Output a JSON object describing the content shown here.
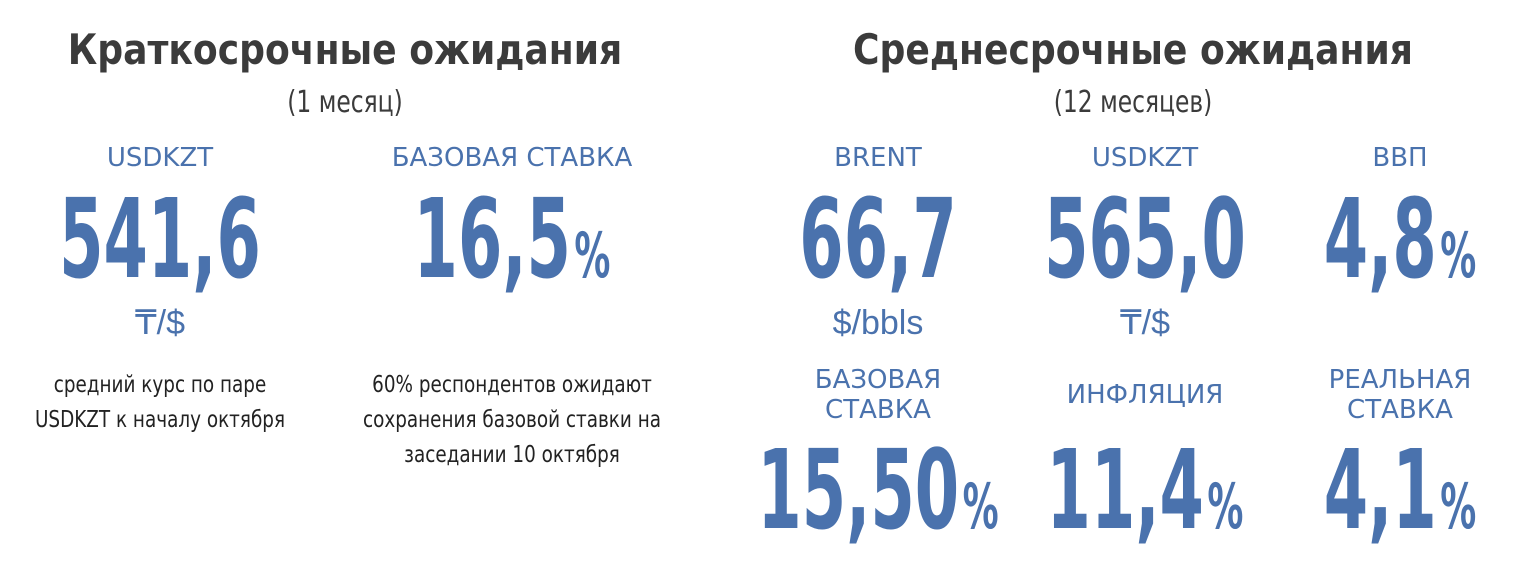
{
  "short_term": {
    "title": "Краткосрочные ожидания",
    "subtitle": "(1 месяц)",
    "items": [
      {
        "label": [
          "USDKZT"
        ],
        "value": "541,6",
        "unit": "₸/$",
        "note": [
          "средний курс по паре",
          "USDKZT к началу октября"
        ]
      },
      {
        "label": [
          "БАЗОВАЯ СТАВКА"
        ],
        "value": "16,5",
        "unit": "%",
        "note": [
          "60% респондентов ожидают",
          "сохранения базовой ставки на",
          "заседании 10 октября"
        ]
      }
    ]
  },
  "medium_term": {
    "title": "Среднесрочные ожидания",
    "subtitle": "(12 месяцев)",
    "items": [
      {
        "label": [
          "BRENT"
        ],
        "value": "66,7",
        "unit": "$/bbls"
      },
      {
        "label": [
          "USDKZT"
        ],
        "value": "565,0",
        "unit": "₸/$"
      },
      {
        "label": [
          "ВВП"
        ],
        "value": "4,8",
        "unit": "%"
      },
      {
        "label": [
          "БАЗОВАЯ",
          "СТАВКА"
        ],
        "value": "15,50",
        "unit": "%"
      },
      {
        "label": [
          "ИНФЛЯЦИЯ"
        ],
        "value": "11,4",
        "unit": "%"
      },
      {
        "label": [
          "РЕАЛЬНАЯ",
          "СТАВКА"
        ],
        "value": "4,1",
        "unit": "%"
      }
    ]
  }
}
